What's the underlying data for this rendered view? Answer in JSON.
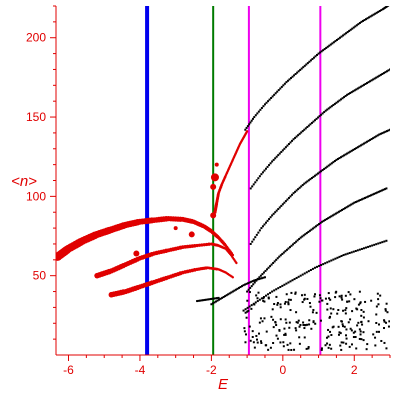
{
  "chart_data": {
    "type": "scatter",
    "title": "",
    "xlabel": "E",
    "ylabel": "<n>",
    "xlim": [
      -6.35,
      3.0
    ],
    "ylim": [
      0,
      220
    ],
    "xticks": [
      -6,
      -4,
      -2,
      0,
      2
    ],
    "yticks": [
      50,
      100,
      150,
      200
    ],
    "grid": false,
    "legend": "none",
    "colors": {
      "axis": "#e00000",
      "ticks": "#e00000",
      "red_points": "#e00000",
      "black_points": "#000000",
      "blue_line": "#0000ee",
      "green_line": "#007a00",
      "magenta_line": "#ee00ee"
    },
    "vertical_lines": [
      {
        "x": -3.8,
        "color": "#0000ee",
        "width": 4
      },
      {
        "x": -1.95,
        "color": "#007a00",
        "width": 2
      },
      {
        "x": -0.95,
        "color": "#ee00ee",
        "width": 2
      },
      {
        "x": 1.05,
        "color": "#ee00ee",
        "width": 2
      }
    ],
    "red_branches": [
      {
        "x": [
          -6.3,
          -6.0,
          -5.6,
          -5.2,
          -4.8,
          -4.4,
          -4.0,
          -3.6,
          -3.2,
          -2.8,
          -2.5,
          -2.2,
          -2.0,
          -1.8,
          -1.6,
          -1.4
        ],
        "y": [
          62,
          67,
          72,
          76,
          79,
          82,
          84,
          85,
          86,
          85.5,
          84,
          81,
          78,
          74,
          69,
          63
        ]
      },
      {
        "x": [
          -5.2,
          -4.8,
          -4.4,
          -4.0,
          -3.6,
          -3.2,
          -2.8,
          -2.4,
          -2.0,
          -1.8,
          -1.6,
          -1.45,
          -1.3
        ],
        "y": [
          50,
          53,
          57,
          61,
          64,
          66,
          68,
          69,
          70,
          69,
          67,
          63,
          58
        ]
      },
      {
        "x": [
          -4.8,
          -4.4,
          -4.0,
          -3.6,
          -3.2,
          -2.8,
          -2.4,
          -2.1,
          -1.8,
          -1.6,
          -1.4
        ],
        "y": [
          38,
          40,
          43,
          46,
          49,
          52,
          54,
          55,
          54,
          52,
          49
        ]
      },
      {
        "x": [
          -1.9,
          -1.85,
          -1.8,
          -1.7,
          -1.6,
          -1.5,
          -1.4,
          -1.3,
          -1.2,
          -1.1,
          -1.0
        ],
        "y": [
          90,
          96,
          102,
          108,
          113,
          118,
          123,
          128,
          133,
          137,
          141
        ]
      }
    ],
    "red_markers": [
      {
        "x": -4.1,
        "y": 64,
        "size": 3
      },
      {
        "x": -1.9,
        "y": 112,
        "size": 4
      },
      {
        "x": -1.95,
        "y": 106,
        "size": 3
      },
      {
        "x": -1.85,
        "y": 120,
        "size": 2
      },
      {
        "x": -2.55,
        "y": 76,
        "size": 3
      },
      {
        "x": -1.95,
        "y": 88,
        "size": 3
      },
      {
        "x": -3.0,
        "y": 80,
        "size": 2
      }
    ],
    "black_branches": [
      {
        "x": [
          -1.05,
          -0.8,
          -0.5,
          -0.2,
          0.1,
          0.4,
          0.7,
          1.0,
          1.3,
          1.6,
          1.9,
          2.2,
          2.5,
          2.8,
          3.0
        ],
        "y": [
          142,
          150,
          158,
          165,
          172,
          178,
          184,
          190,
          195,
          200,
          205,
          210,
          214,
          218,
          221
        ]
      },
      {
        "x": [
          -0.9,
          -0.6,
          -0.3,
          0.0,
          0.3,
          0.6,
          0.9,
          1.2,
          1.5,
          1.8,
          2.1,
          2.4,
          2.7,
          3.0
        ],
        "y": [
          105,
          114,
          122,
          129,
          136,
          142,
          148,
          154,
          159,
          164,
          168,
          172,
          176,
          180
        ]
      },
      {
        "x": [
          -0.9,
          -0.6,
          -0.3,
          0.0,
          0.3,
          0.6,
          0.9,
          1.2,
          1.5,
          1.8,
          2.1,
          2.4,
          2.7,
          3.0
        ],
        "y": [
          70,
          80,
          88,
          95,
          102,
          108,
          113,
          118,
          123,
          127,
          131,
          135,
          139,
          142
        ]
      },
      {
        "x": [
          -1.0,
          -0.7,
          -0.4,
          -0.1,
          0.2,
          0.5,
          0.8,
          1.1,
          1.4,
          1.7,
          2.0,
          2.3,
          2.6,
          2.9
        ],
        "y": [
          40,
          48,
          55,
          62,
          68,
          74,
          79,
          84,
          88,
          92,
          96,
          99,
          102,
          105
        ]
      },
      {
        "x": [
          -1.1,
          -0.7,
          -0.3,
          0.1,
          0.5,
          0.9,
          1.3,
          1.7,
          2.1,
          2.5,
          2.9
        ],
        "y": [
          28,
          34,
          40,
          45,
          50,
          55,
          59,
          63,
          66,
          69,
          72
        ]
      },
      {
        "x": [
          -2.0,
          -1.7,
          -1.4,
          -1.1,
          -0.8,
          -0.5
        ],
        "y": [
          32,
          36,
          40,
          44,
          47,
          49
        ]
      },
      {
        "x": [
          -2.4,
          -2.1,
          -1.8
        ],
        "y": [
          34,
          35,
          36
        ]
      }
    ],
    "black_scatter": {
      "xrange": [
        -1.1,
        3.0
      ],
      "yrange": [
        3,
        40
      ],
      "count": 260
    }
  }
}
